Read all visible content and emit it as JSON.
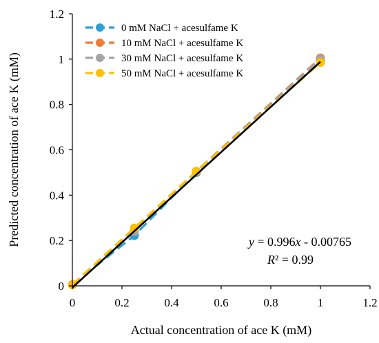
{
  "chart_data": {
    "type": "scatter",
    "title": "",
    "xlabel": "Actual concentration of ace K (mM)",
    "ylabel": "Predicted concentration of ace K (mM)",
    "xlim": [
      0,
      1.2
    ],
    "ylim": [
      0,
      1.2
    ],
    "x_ticks": [
      "0",
      "0.2",
      "0.4",
      "0.6",
      "0.8",
      "1",
      "1.2"
    ],
    "y_ticks": [
      "0",
      "0.2",
      "0.4",
      "0.6",
      "0.8",
      "1",
      "1.2"
    ],
    "grid": false,
    "legend_position": "top-left",
    "series": [
      {
        "name": "0 mM NaCl + acesulfame K",
        "color": "#2e9fd3",
        "x": [
          0,
          0.25,
          0.5,
          1
        ],
        "y": [
          0.005,
          0.222,
          0.5,
          0.99
        ]
      },
      {
        "name": "10 mM NaCl + acesulfame K",
        "color": "#ed7d31",
        "x": [
          0,
          0.25,
          0.5,
          1
        ],
        "y": [
          0.005,
          0.245,
          0.505,
          1.005
        ]
      },
      {
        "name": "30 mM NaCl + acesulfame K",
        "color": "#a5a5a5",
        "x": [
          0,
          0.25,
          0.5,
          1
        ],
        "y": [
          0.005,
          0.24,
          0.505,
          1.0
        ]
      },
      {
        "name": "50 mM NaCl + acesulfame K",
        "color": "#ffc000",
        "x": [
          0,
          0.25,
          0.5,
          1
        ],
        "y": [
          0.005,
          0.255,
          0.505,
          0.985
        ]
      }
    ],
    "trendline": {
      "slope": 0.996,
      "intercept": -0.00765,
      "color": "#000000",
      "x_range": [
        0,
        1
      ]
    },
    "equation_text": {
      "y_var": "y",
      "eq_mid": " = 0.996",
      "x_var": "x",
      "eq_tail": " - 0.00765",
      "r2_var": "R",
      "r2_tail": "² = 0.99"
    }
  }
}
